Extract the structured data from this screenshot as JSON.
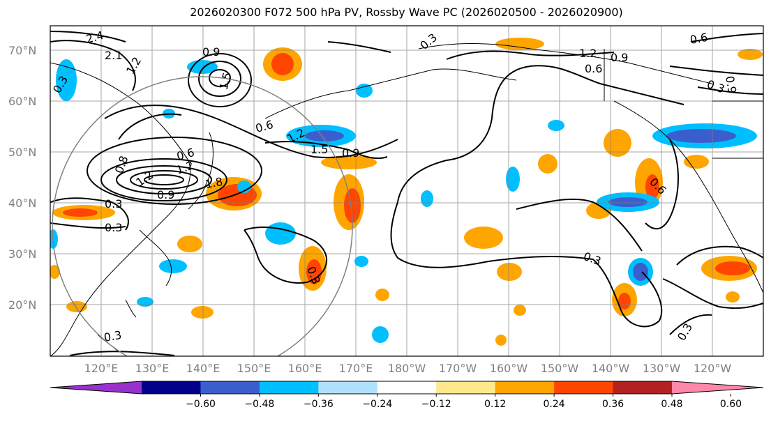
{
  "title": "2026020300 F072 500 hPa PV, Rossby Wave PC (2026020500 - 2026020900)",
  "map": {
    "lat_labels": [
      "70°N",
      "60°N",
      "50°N",
      "40°N",
      "30°N",
      "20°N"
    ],
    "lon_labels": [
      "120°E",
      "130°E",
      "140°E",
      "150°E",
      "160°E",
      "170°E",
      "180°W",
      "170°W",
      "160°W",
      "150°W",
      "140°W",
      "130°W",
      "120°W"
    ],
    "contour_labels": [
      "0.9",
      "1.2",
      "1.5",
      "2.1",
      "2.4",
      "1.2",
      "0.9",
      "0.6",
      "0.6",
      "1.2",
      "1.5",
      "0.9",
      "0.3",
      "0.3",
      "0.3",
      "0.3",
      "0.6",
      "1.2",
      "0.9",
      "0.6",
      "0.9",
      "0.3",
      "0.6",
      "0.3",
      "0.3",
      "0.3",
      "0.3",
      "1.2",
      "0.8",
      "1.8"
    ],
    "colors": {
      "ocean": "#ffffff",
      "land_line": "#000000",
      "grid": "#808080",
      "contour": "#000000",
      "neg_strong": "#3a5fcd",
      "neg_mid": "#00bfff",
      "neg_weak": "#add8ff",
      "pos_weak": "#ffe98c",
      "pos_mid": "#ffa500",
      "pos_strong": "#ff4500",
      "pos_max": "#b22222"
    }
  },
  "colorbar": {
    "ticks": [
      "−0.60",
      "−0.48",
      "−0.36",
      "−0.24",
      "−0.12",
      "0.12",
      "0.24",
      "0.36",
      "0.48",
      "0.60"
    ],
    "bins": [
      {
        "color": "#9932cc"
      },
      {
        "color": "#00008b"
      },
      {
        "color": "#3a5fcd"
      },
      {
        "color": "#00bfff"
      },
      {
        "color": "#b0e0ff"
      },
      {
        "color": "#ffffff"
      },
      {
        "color": "#ffe98c"
      },
      {
        "color": "#ffa500"
      },
      {
        "color": "#ff4500"
      },
      {
        "color": "#b22222"
      },
      {
        "color": "#ff88aa"
      }
    ]
  }
}
